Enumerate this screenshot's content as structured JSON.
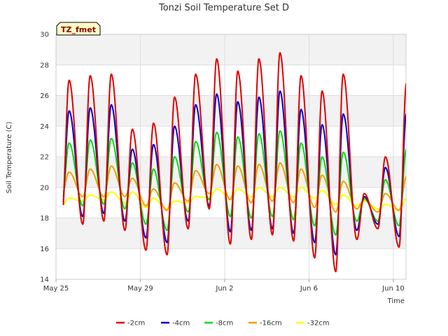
{
  "chart_data": {
    "type": "line",
    "title": "Tonzi Soil Temperature Set D",
    "xlabel": "Time",
    "ylabel": "Soil Temperature (C)",
    "badge": "TZ_fmet",
    "xlim": [
      0,
      16.6
    ],
    "ylim": [
      14,
      30
    ],
    "yticks": [
      14,
      16,
      18,
      20,
      22,
      24,
      26,
      28,
      30
    ],
    "xticks": [
      {
        "pos": 0,
        "label": "May 25"
      },
      {
        "pos": 4,
        "label": "May 29"
      },
      {
        "pos": 8,
        "label": "Jun 2"
      },
      {
        "pos": 12,
        "label": "Jun 6"
      },
      {
        "pos": 16,
        "label": "Jun 10"
      }
    ],
    "x_start": 0.35,
    "x_end": 17.05,
    "legend_position": "bottom",
    "background_bands": "alternating gray",
    "series": [
      {
        "name": "-2cm",
        "color": "#e00000",
        "min": [
          17.7,
          17.6,
          17.8,
          17.2,
          15.9,
          15.6,
          17.3,
          18.6,
          16.3,
          16.6,
          16.9,
          16.5,
          15.4,
          14.5,
          16.6,
          17.3,
          16.1
        ],
        "max": [
          27.0,
          27.3,
          27.4,
          23.8,
          24.2,
          25.9,
          27.4,
          28.4,
          27.6,
          28.4,
          28.8,
          27.3,
          26.3,
          27.4,
          19.6,
          22.0,
          26.8
        ]
      },
      {
        "name": "-4cm",
        "color": "#0000cc",
        "min": [
          18.2,
          18.1,
          18.3,
          17.8,
          16.7,
          16.4,
          17.8,
          18.8,
          17.1,
          17.2,
          17.3,
          17.0,
          16.4,
          15.6,
          17.2,
          17.6,
          16.8
        ],
        "max": [
          25.0,
          25.2,
          25.4,
          22.5,
          22.8,
          24.0,
          25.4,
          26.1,
          25.6,
          25.9,
          26.3,
          25.1,
          24.1,
          24.8,
          19.4,
          21.3,
          24.8
        ]
      },
      {
        "name": "-8cm",
        "color": "#00dd00",
        "min": [
          18.9,
          18.8,
          18.9,
          18.6,
          17.6,
          17.2,
          18.4,
          19.2,
          18.1,
          18.0,
          18.1,
          17.9,
          17.5,
          16.9,
          17.8,
          17.8,
          17.5
        ],
        "max": [
          22.9,
          23.1,
          23.2,
          21.6,
          21.2,
          22.0,
          23.0,
          23.6,
          23.3,
          23.5,
          23.7,
          22.9,
          22.0,
          22.3,
          19.3,
          20.5,
          22.5
        ]
      },
      {
        "name": "-16cm",
        "color": "#ff9900",
        "min": [
          19.5,
          19.4,
          19.4,
          19.4,
          18.8,
          18.5,
          19.1,
          19.6,
          19.2,
          19.0,
          19.1,
          19.0,
          18.7,
          18.4,
          18.6,
          18.4,
          18.5
        ],
        "max": [
          21.0,
          21.2,
          21.4,
          20.6,
          19.9,
          20.3,
          21.1,
          21.5,
          21.4,
          21.5,
          21.6,
          21.2,
          20.8,
          20.4,
          19.2,
          19.6,
          20.7
        ]
      },
      {
        "name": "-32cm",
        "color": "#ffff00",
        "min": [
          18.8,
          19.1,
          19.2,
          19.0,
          18.7,
          18.6,
          19.0,
          19.3,
          19.3,
          19.4,
          19.4,
          19.4,
          19.3,
          18.9,
          18.8,
          18.6,
          18.5
        ],
        "max": [
          19.3,
          19.5,
          19.7,
          19.7,
          19.3,
          19.1,
          19.4,
          19.9,
          19.9,
          20.0,
          20.0,
          20.0,
          19.8,
          19.5,
          19.1,
          18.9,
          19.3
        ]
      }
    ]
  }
}
